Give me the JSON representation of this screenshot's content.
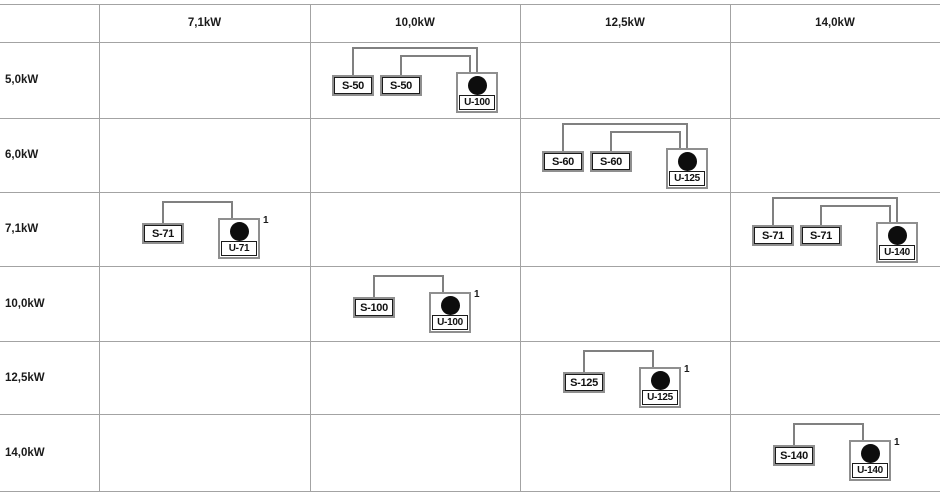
{
  "colors": {
    "background": "#ffffff",
    "grid_line": "#a3a3a3",
    "connector_line": "#808080",
    "box_outer_border": "#8f8f8f",
    "box_inner_border": "#1a1a1a",
    "unit_dot": "#0d0d0d",
    "text": "#1a1a1a"
  },
  "grid": {
    "col_headers": [
      "7,1kW",
      "10,0kW",
      "12,5kW",
      "14,0kW"
    ],
    "row_labels": [
      "5,0kW",
      "6,0kW",
      "7,1kW",
      "10,0kW",
      "12,5kW",
      "14,0kW"
    ]
  },
  "cells": [
    {
      "row": 0,
      "col": 1,
      "type": "dual",
      "s_labels": [
        "S-50",
        "S-50"
      ],
      "u_label": "U-100",
      "superscript": null
    },
    {
      "row": 1,
      "col": 2,
      "type": "dual",
      "s_labels": [
        "S-60",
        "S-60"
      ],
      "u_label": "U-125",
      "superscript": null
    },
    {
      "row": 2,
      "col": 0,
      "type": "single",
      "s_labels": [
        "S-71"
      ],
      "u_label": "U-71",
      "superscript": "1"
    },
    {
      "row": 2,
      "col": 3,
      "type": "dual",
      "s_labels": [
        "S-71",
        "S-71"
      ],
      "u_label": "U-140",
      "superscript": null
    },
    {
      "row": 3,
      "col": 1,
      "type": "single",
      "s_labels": [
        "S-100"
      ],
      "u_label": "U-100",
      "superscript": "1"
    },
    {
      "row": 4,
      "col": 2,
      "type": "single",
      "s_labels": [
        "S-125"
      ],
      "u_label": "U-125",
      "superscript": "1"
    },
    {
      "row": 5,
      "col": 3,
      "type": "single",
      "s_labels": [
        "S-140"
      ],
      "u_label": "U-140",
      "superscript": "1"
    }
  ]
}
